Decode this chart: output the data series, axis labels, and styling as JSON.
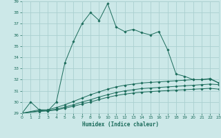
{
  "title": "",
  "xlabel": "Humidex (Indice chaleur)",
  "background_color": "#cce8e8",
  "grid_color": "#aad0d0",
  "line_color": "#1a6b5a",
  "x_min": 0,
  "x_max": 23,
  "y_min": 29,
  "y_max": 39,
  "x_ticks": [
    0,
    1,
    2,
    3,
    4,
    5,
    6,
    7,
    8,
    9,
    10,
    11,
    12,
    13,
    14,
    15,
    16,
    17,
    18,
    19,
    20,
    21,
    22,
    23
  ],
  "y_ticks": [
    29,
    30,
    31,
    32,
    33,
    34,
    35,
    36,
    37,
    38,
    39
  ],
  "series1_x": [
    0,
    1,
    2,
    3,
    4,
    5,
    6,
    7,
    8,
    9,
    10,
    11,
    12,
    13,
    14,
    15,
    16,
    17,
    18,
    19,
    20,
    21,
    22,
    23
  ],
  "series1_y": [
    29.0,
    30.0,
    29.3,
    29.2,
    30.0,
    33.5,
    35.4,
    37.0,
    38.0,
    37.3,
    38.8,
    36.7,
    36.3,
    36.5,
    36.2,
    36.0,
    36.3,
    34.7,
    32.5,
    32.3,
    32.0,
    32.0,
    32.1,
    31.7
  ],
  "series2_x": [
    0,
    2,
    3,
    4,
    5,
    6,
    7,
    8,
    9,
    10,
    11,
    12,
    13,
    14,
    15,
    16,
    17,
    18,
    19,
    20,
    21,
    22,
    23
  ],
  "series2_y": [
    29.0,
    29.3,
    29.3,
    29.5,
    29.75,
    30.05,
    30.35,
    30.65,
    30.9,
    31.15,
    31.35,
    31.5,
    31.6,
    31.7,
    31.75,
    31.8,
    31.85,
    31.9,
    31.95,
    32.0,
    32.0,
    32.05,
    31.7
  ],
  "series3_x": [
    0,
    2,
    3,
    4,
    5,
    6,
    7,
    8,
    9,
    10,
    11,
    12,
    13,
    14,
    15,
    16,
    17,
    18,
    19,
    20,
    21,
    22,
    23
  ],
  "series3_y": [
    29.0,
    29.2,
    29.25,
    29.35,
    29.55,
    29.75,
    30.0,
    30.2,
    30.45,
    30.65,
    30.85,
    31.0,
    31.1,
    31.2,
    31.25,
    31.3,
    31.35,
    31.4,
    31.45,
    31.5,
    31.55,
    31.6,
    31.55
  ],
  "series4_x": [
    0,
    2,
    3,
    4,
    5,
    6,
    7,
    8,
    9,
    10,
    11,
    12,
    13,
    14,
    15,
    16,
    17,
    18,
    19,
    20,
    21,
    22,
    23
  ],
  "series4_y": [
    29.0,
    29.15,
    29.2,
    29.28,
    29.45,
    29.62,
    29.82,
    30.0,
    30.22,
    30.42,
    30.58,
    30.7,
    30.8,
    30.88,
    30.93,
    30.98,
    31.02,
    31.06,
    31.1,
    31.14,
    31.18,
    31.22,
    31.15
  ]
}
